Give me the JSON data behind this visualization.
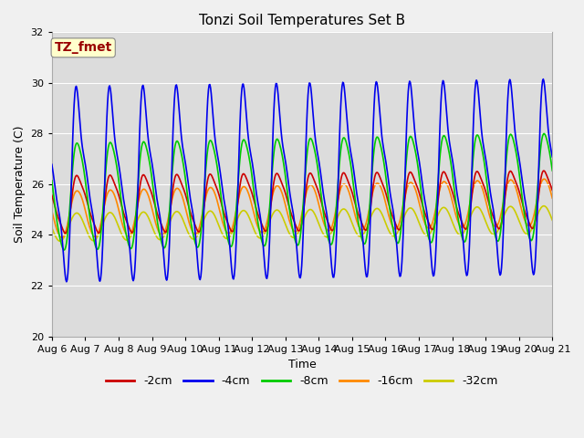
{
  "title": "Tonzi Soil Temperatures Set B",
  "xlabel": "Time",
  "ylabel": "Soil Temperature (C)",
  "ylim": [
    20,
    32
  ],
  "n_days": 15,
  "x_tick_labels": [
    "Aug 6",
    "Aug 7",
    "Aug 8",
    "Aug 9",
    "Aug 10",
    "Aug 11",
    "Aug 12",
    "Aug 13",
    "Aug 14",
    "Aug 15",
    "Aug 16",
    "Aug 17",
    "Aug 18",
    "Aug 19",
    "Aug 20",
    "Aug 21"
  ],
  "annotation_text": "TZ_fmet",
  "annotation_color": "#990000",
  "annotation_bg": "#ffffcc",
  "bg_color": "#dcdcdc",
  "fig_bg_color": "#f0f0f0",
  "legend_entries": [
    "-2cm",
    "-4cm",
    "-8cm",
    "-16cm",
    "-32cm"
  ],
  "line_colors": [
    "#cc0000",
    "#0000ee",
    "#00cc00",
    "#ff8800",
    "#cccc00"
  ],
  "grid_color": "#ffffff",
  "title_fontsize": 11,
  "label_fontsize": 9,
  "tick_fontsize": 8
}
